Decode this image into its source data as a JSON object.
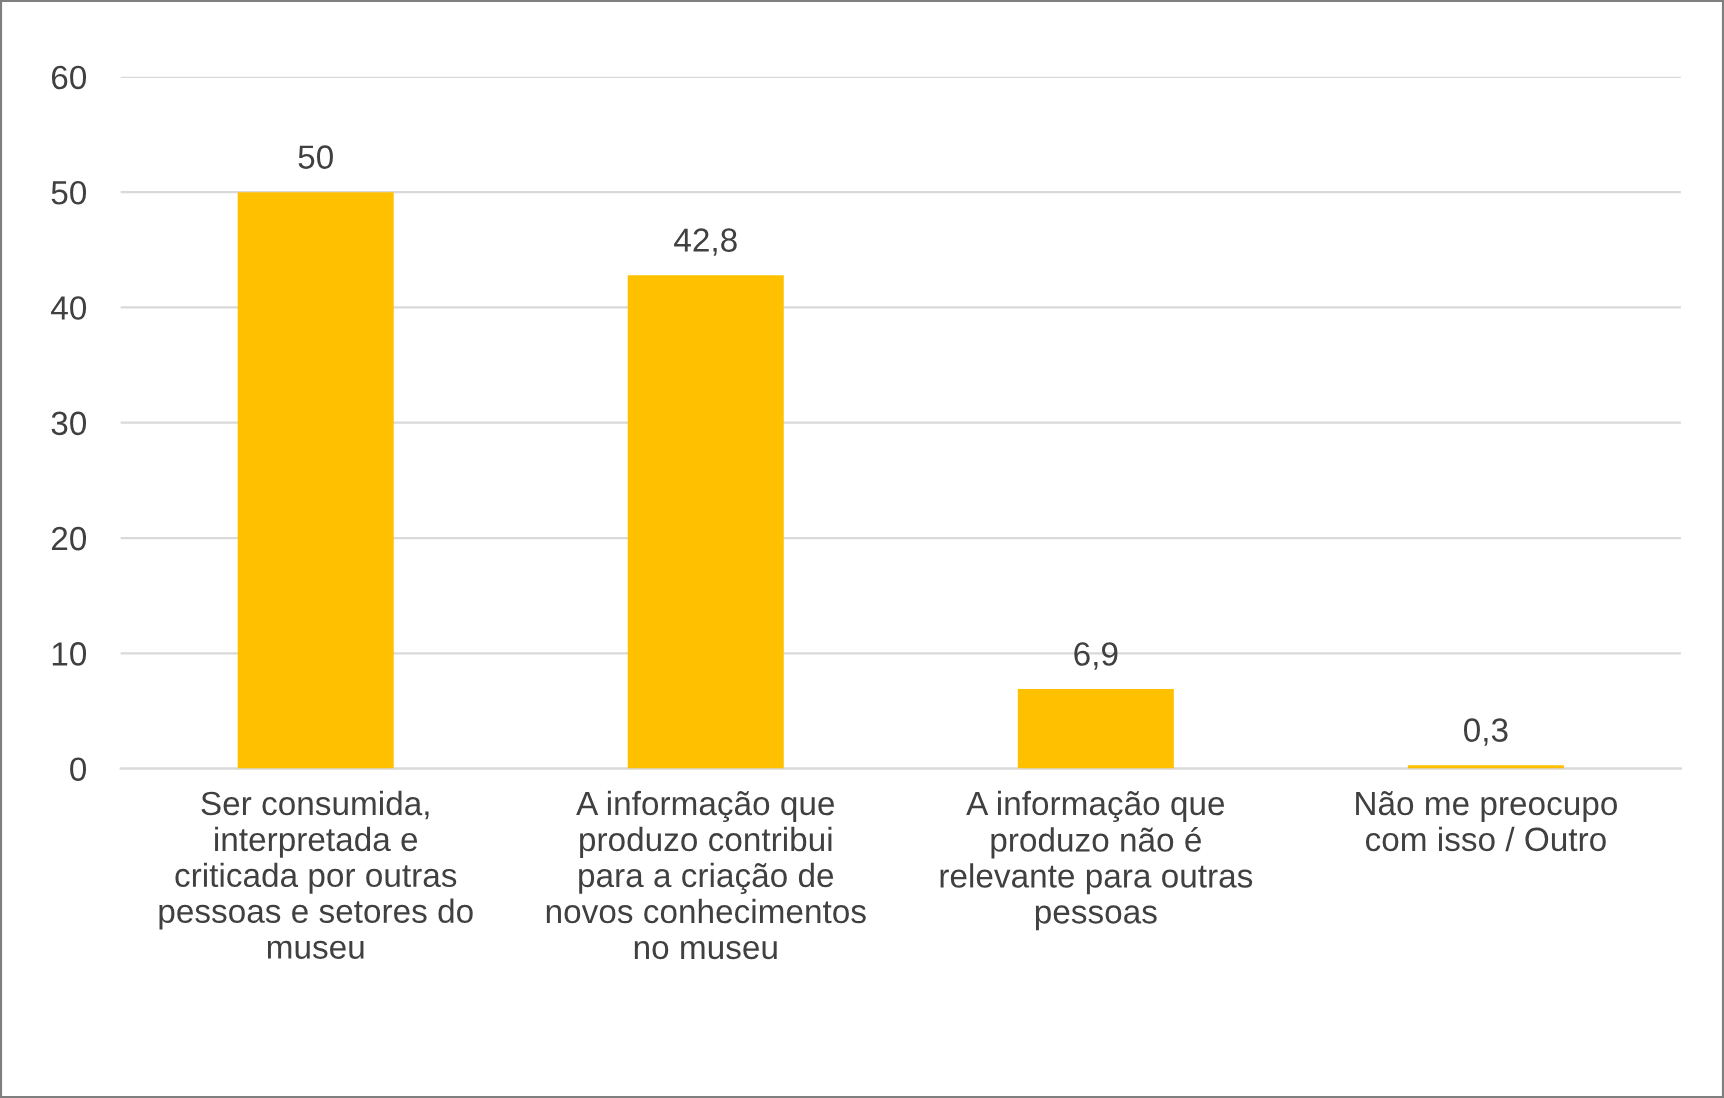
{
  "chart_data": {
    "type": "bar",
    "categories": [
      "Ser consumida,\ninterpretada e\ncriticada por outras\npessoas e setores do\nmuseu",
      "A informação que\nproduzo contribui\npara a criação de\nnovos conhecimentos\nno museu",
      "A informação que\nproduzo não é\nrelevante para outras\npessoas",
      "Não me preocupo\ncom isso / Outro"
    ],
    "values": [
      50,
      42.8,
      6.9,
      0.3
    ],
    "value_labels": [
      "50",
      "42,8",
      "6,9",
      "0,3"
    ],
    "color": "#ffc000",
    "ylim": [
      0,
      60
    ],
    "yticks": [
      0,
      10,
      20,
      30,
      40,
      50,
      60
    ],
    "grid": "y"
  }
}
